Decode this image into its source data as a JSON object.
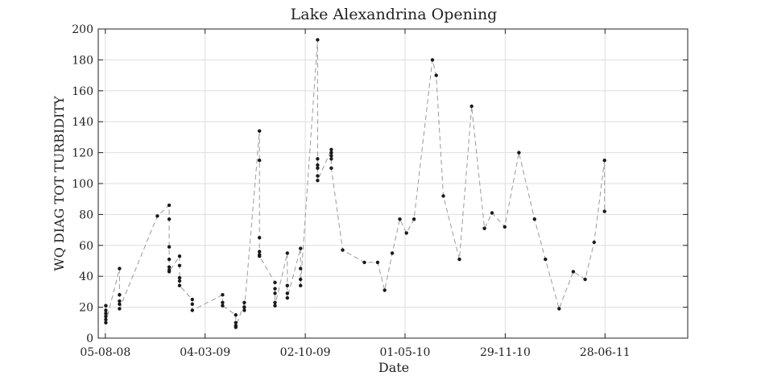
{
  "chart_data": {
    "type": "line",
    "title": "Lake Alexandrina Opening",
    "xlabel": "Date",
    "ylabel": "WQ DIAG TOT TURBIDITY",
    "x_axis_type": "date",
    "date_label_format": "DD-MM-YY",
    "xlim": [
      "2008-07-21",
      "2011-12-20"
    ],
    "ylim": [
      0,
      200
    ],
    "x_ticks": [
      "05-08-08",
      "04-03-09",
      "02-10-09",
      "01-05-10",
      "29-11-10",
      "28-06-11"
    ],
    "y_ticks": [
      0,
      20,
      40,
      60,
      80,
      100,
      120,
      140,
      160,
      180,
      200
    ],
    "grid": true,
    "legend": "none",
    "colors": {
      "line": "#9a9a9a",
      "marker": "#1a1a1a",
      "grid": "#dddddd",
      "axes": "#222222"
    },
    "series": [
      {
        "x": [
          "2008-08-06",
          "2008-08-06",
          "2008-08-06",
          "2008-08-06",
          "2008-08-06",
          "2008-08-06",
          "2008-09-04",
          "2008-09-04",
          "2008-09-04",
          "2008-09-04",
          "2008-09-04",
          "2008-11-23",
          "2008-12-18",
          "2008-12-18",
          "2008-12-18",
          "2008-12-18",
          "2008-12-18",
          "2008-12-18",
          "2008-12-18",
          "2009-01-09",
          "2009-01-09",
          "2009-01-09",
          "2009-01-09",
          "2009-01-09",
          "2009-02-05",
          "2009-02-05",
          "2009-02-05",
          "2009-04-10",
          "2009-04-10",
          "2009-04-10",
          "2009-05-08",
          "2009-05-08",
          "2009-05-08",
          "2009-05-08",
          "2009-05-26",
          "2009-05-26",
          "2009-05-26",
          "2009-06-27",
          "2009-06-27",
          "2009-06-27",
          "2009-06-27",
          "2009-06-27",
          "2009-06-27",
          "2009-07-30",
          "2009-07-30",
          "2009-07-30",
          "2009-07-30",
          "2009-07-30",
          "2009-08-25",
          "2009-08-25",
          "2009-08-25",
          "2009-08-25",
          "2009-09-22",
          "2009-09-22",
          "2009-09-22",
          "2009-09-22",
          "2009-10-28",
          "2009-10-28",
          "2009-10-28",
          "2009-10-28",
          "2009-10-28",
          "2009-10-28",
          "2009-11-26",
          "2009-11-26",
          "2009-11-26",
          "2009-11-26",
          "2009-11-26",
          "2009-12-20",
          "2010-02-04",
          "2010-03-04",
          "2010-03-19",
          "2010-04-04",
          "2010-04-20",
          "2010-05-04",
          "2010-05-20",
          "2010-06-28",
          "2010-07-06",
          "2010-07-21",
          "2010-08-24",
          "2010-09-19",
          "2010-10-16",
          "2010-11-01",
          "2010-11-28",
          "2010-12-28",
          "2011-01-30",
          "2011-02-22",
          "2011-03-23",
          "2011-04-22",
          "2011-05-17",
          "2011-06-05",
          "2011-06-27",
          "2011-06-27"
        ],
        "y": [
          21,
          18,
          16,
          14,
          12,
          10,
          45,
          28,
          24,
          22,
          19,
          79,
          86,
          77,
          59,
          51,
          46,
          44,
          43,
          53,
          47,
          39,
          37,
          34,
          25,
          22,
          18,
          28,
          23,
          21,
          15,
          10,
          8,
          7,
          23,
          20,
          18,
          134,
          115,
          65,
          56,
          54,
          53,
          36,
          32,
          29,
          23,
          21,
          55,
          34,
          29,
          26,
          58,
          45,
          38,
          34,
          193,
          116,
          112,
          110,
          105,
          102,
          122,
          120,
          118,
          116,
          110,
          57,
          49,
          49,
          31,
          55,
          77,
          68,
          77,
          180,
          170,
          92,
          51,
          150,
          71,
          81,
          72,
          120,
          77,
          51,
          19,
          43,
          38,
          62,
          115,
          82
        ]
      }
    ]
  }
}
